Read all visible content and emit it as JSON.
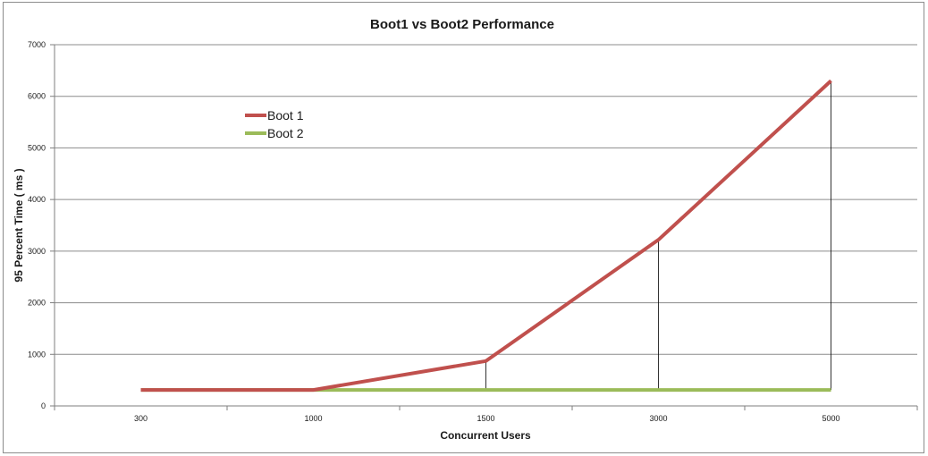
{
  "chart_data": {
    "type": "line",
    "title": "Boot1 vs Boot2 Performance",
    "xlabel": "Concurrent Users",
    "ylabel": "95 Percent Time ( ms )",
    "categories": [
      "300",
      "1000",
      "1500",
      "3000",
      "5000"
    ],
    "series": [
      {
        "name": "Boot 1",
        "values": [
          310,
          310,
          870,
          3220,
          6300
        ],
        "color": "#c0504d"
      },
      {
        "name": "Boot 2",
        "values": [
          310,
          310,
          310,
          310,
          310
        ],
        "color": "#9bbb59"
      }
    ],
    "ylim": [
      0,
      7000
    ],
    "yticks": [
      "0",
      "1000",
      "2000",
      "3000",
      "4000",
      "5000",
      "6000",
      "7000"
    ],
    "grid": true,
    "drop_lines": true,
    "legend_position": "top-left"
  }
}
